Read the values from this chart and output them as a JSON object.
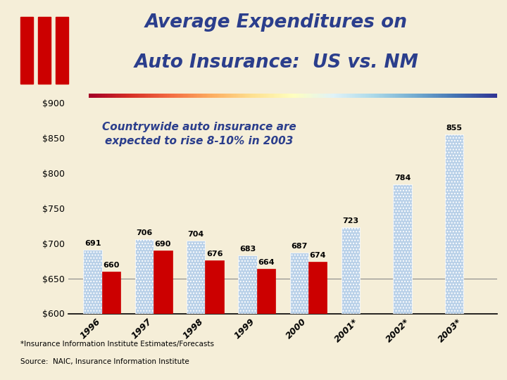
{
  "title_line1": "Average Expenditures on",
  "title_line2": "Auto Insurance:  US vs. NM",
  "subtitle": "Countrywide auto insurance are\nexpected to rise 8-10% in 2003",
  "categories": [
    "1996",
    "1997",
    "1998",
    "1999",
    "2000",
    "2001*",
    "2002*",
    "2003*"
  ],
  "us_values": [
    691,
    706,
    704,
    683,
    687,
    723,
    784,
    855
  ],
  "nm_values": [
    660,
    690,
    676,
    664,
    674,
    null,
    null,
    null
  ],
  "us_color": "#b8d0e8",
  "us_hatch": "....",
  "nm_color": "#cc0000",
  "ylim": [
    600,
    900
  ],
  "yticks": [
    600,
    650,
    700,
    750,
    800,
    850,
    900
  ],
  "ytick_labels": [
    "$600",
    "$650",
    "$700",
    "$750",
    "$800",
    "$850",
    "$900"
  ],
  "bg_color": "#f5eed8",
  "footnote1": "*Insurance Information Institute Estimates/Forecasts",
  "footnote2": "Source:  NAIC, Insurance Information Institute",
  "title_color": "#2b3e8c",
  "subtitle_color": "#2b3e8c",
  "grid_color": "#888888",
  "logo_color": "#cc0000",
  "separator_left_color": "#cc0000",
  "separator_right_color": "#2b3e8c"
}
